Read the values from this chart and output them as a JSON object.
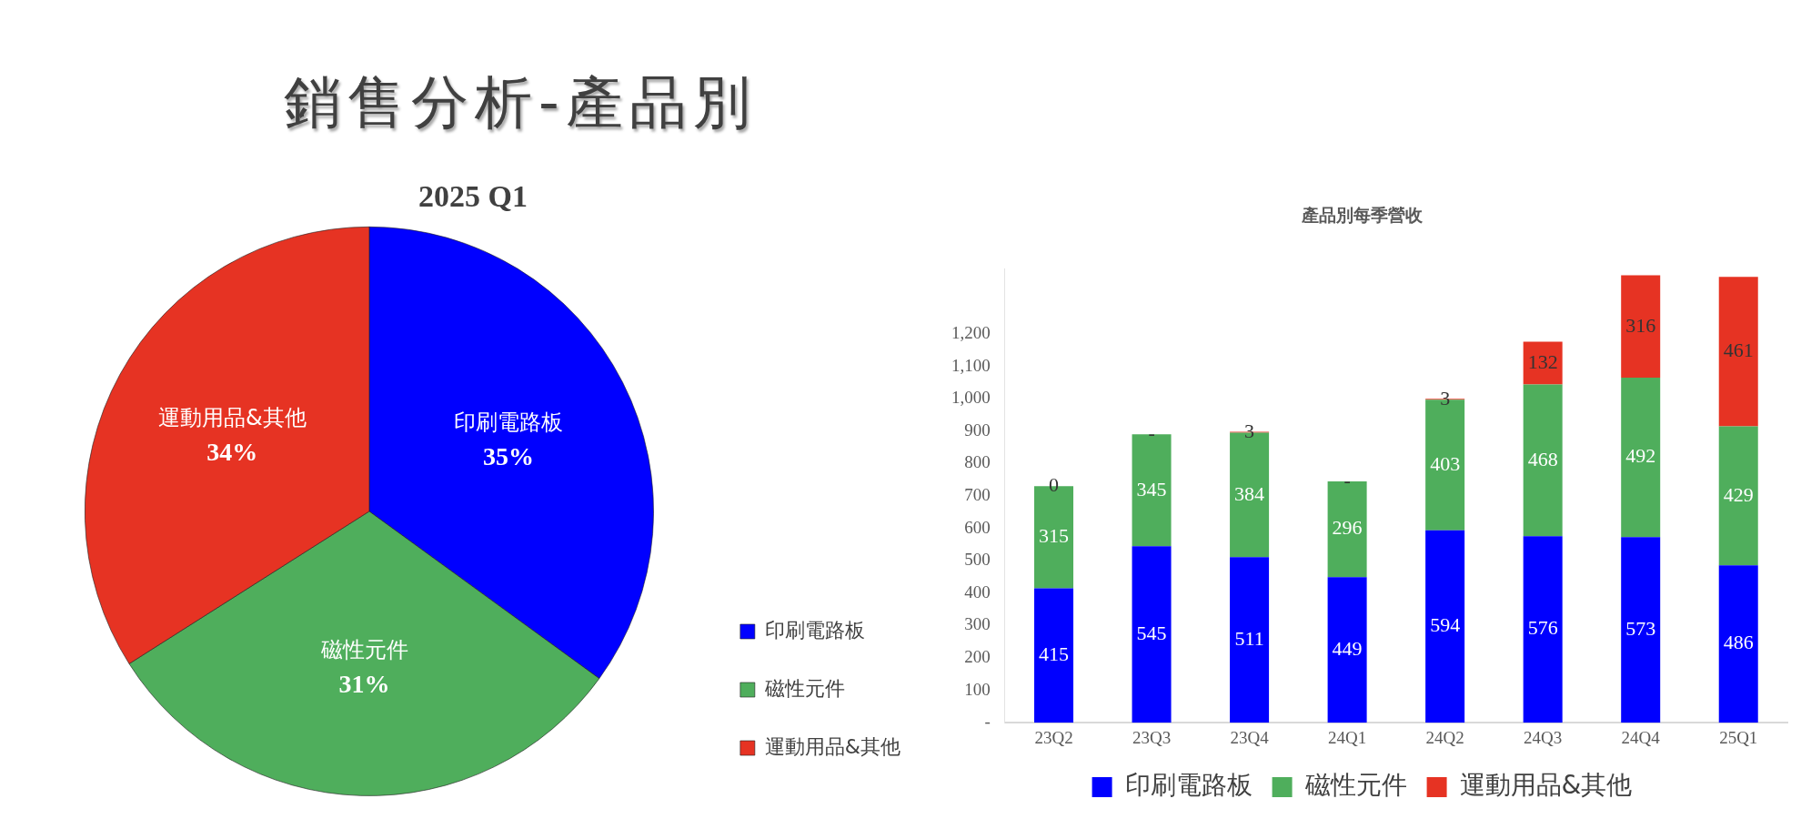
{
  "chart_data": [
    {
      "type": "other",
      "title": "銷售分析-產品別"
    },
    {
      "type": "pie",
      "title": "2025 Q1",
      "categories": [
        "印刷電路板",
        "磁性元件",
        "運動用品&其他"
      ],
      "values": [
        35,
        31,
        34
      ],
      "colors": [
        "#0000ff",
        "#4fae5c",
        "#e63323"
      ],
      "value_labels": [
        "35%",
        "31%",
        "34%"
      ],
      "legend": "bottom right"
    },
    {
      "type": "bar",
      "title": "產品別每季營收",
      "categories": [
        "23Q2",
        "23Q3",
        "23Q4",
        "24Q1",
        "24Q2",
        "24Q3",
        "24Q4",
        "25Q1"
      ],
      "stacked": true,
      "series": [
        {
          "name": "印刷電路板",
          "color": "#0000ff",
          "values": [
            415,
            545,
            511,
            449,
            594,
            576,
            573,
            486
          ],
          "value_labels": [
            "415",
            "545",
            "511",
            "449",
            "594",
            "576",
            "573",
            "486"
          ]
        },
        {
          "name": "磁性元件",
          "color": "#4fae5c",
          "values": [
            315,
            345,
            384,
            296,
            403,
            468,
            492,
            429
          ],
          "value_labels": [
            "315",
            "345",
            "384",
            "296",
            "403",
            "468",
            "492",
            "429"
          ]
        },
        {
          "name": "運動用品&其他",
          "color": "#e63323",
          "values": [
            0,
            0,
            3,
            0,
            3,
            132,
            316,
            461
          ],
          "value_labels": [
            "0",
            "-",
            "3",
            "-",
            "3",
            "132",
            "316",
            "461"
          ]
        }
      ],
      "ylim": [
        0,
        1400
      ],
      "yticks": [
        {
          "value": 0,
          "label": "-"
        },
        100,
        200,
        300,
        400,
        500,
        600,
        700,
        800,
        900,
        {
          "value": 1000,
          "label": "1,000"
        },
        {
          "value": 1100,
          "label": "1,100"
        },
        {
          "value": 1200,
          "label": "1,200"
        }
      ],
      "legend": "bottom"
    }
  ]
}
